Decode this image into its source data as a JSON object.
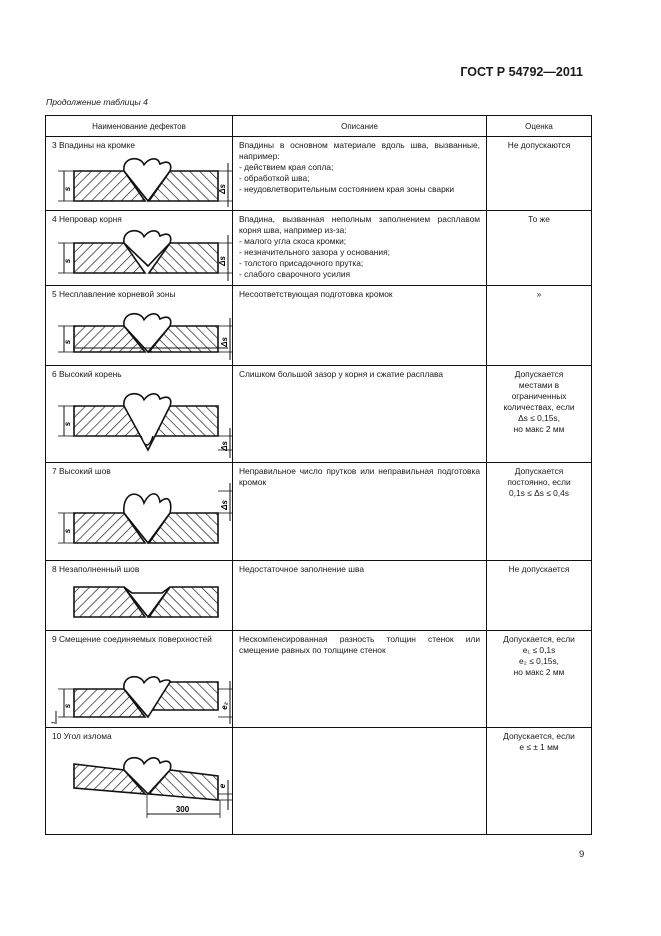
{
  "header": {
    "doc_code": "ГОСТ Р 54792—2011"
  },
  "caption": "Продолжение таблицы 4",
  "table": {
    "columns": [
      "Наименование дефектов",
      "Описание",
      "Оценка"
    ],
    "rows": [
      {
        "name": "3  Впадины на кромке",
        "description": [
          "Впадины в основном материале вдоль шва, вызванные, например:",
          "- действием края сопла;",
          "- обработкой шва;",
          "- неудовлетворительным состоянием края зоны сварки"
        ],
        "evaluation": [
          "Не допускаются"
        ],
        "labels": [
          "s",
          "Δs"
        ]
      },
      {
        "name": "4  Непровар корня",
        "description": [
          "Впадина, вызванная неполным заполнением расплавом корня шва, например из-за:",
          "- малого угла скоса кромки;",
          "- незначительного зазора у основания;",
          "- толстого присадочного прутка;",
          "- слабого сварочного усилия"
        ],
        "evaluation": [
          "То же"
        ],
        "labels": [
          "s",
          "Δs"
        ]
      },
      {
        "name": "5  Несплавление корневой зоны",
        "description": [
          "Несоответствующая подготовка кромок"
        ],
        "evaluation": [
          "»"
        ],
        "labels": [
          "s",
          "Δs"
        ]
      },
      {
        "name": "6  Высокий корень",
        "description": [
          "Слишком большой зазор у корня и сжатие расплава"
        ],
        "evaluation": [
          "Допускается",
          "местами в",
          "ограниченных",
          "количествах, если",
          "Δs  ≤  0,15s,",
          "но макс 2 мм"
        ],
        "labels": [
          "s",
          "Δs"
        ]
      },
      {
        "name": "7  Высокий шов",
        "description": [
          "Неправильное число прутков или неправильная подготовка кромок"
        ],
        "evaluation": [
          "Допускается",
          "постоянно, если",
          "0,1s ≤  Δs ≤ 0,4s"
        ],
        "labels": [
          "s",
          "Δs"
        ]
      },
      {
        "name": "8  Незаполненный шов",
        "description": [
          "Недостаточное заполнение шва"
        ],
        "evaluation": [
          "Не допускается"
        ],
        "labels": []
      },
      {
        "name": "9  Смещение соединяемых поверхностей",
        "description": [
          "Нескомпенсированная разность толщин стенок или смещение равных по толщине стенок"
        ],
        "evaluation": [
          "Допускается, если",
          "e₁ ≤  0,1s",
          "e₂ ≤ 0,15s,",
          "но макс 2 мм"
        ],
        "labels": [
          "s",
          "e₂",
          "e₁"
        ]
      },
      {
        "name": "10  Угол излома",
        "description": [],
        "evaluation": [
          "Допускается, если",
          "e ≤ ± 1 мм"
        ],
        "labels": [
          "e",
          "300"
        ]
      }
    ]
  },
  "page_number": "9"
}
